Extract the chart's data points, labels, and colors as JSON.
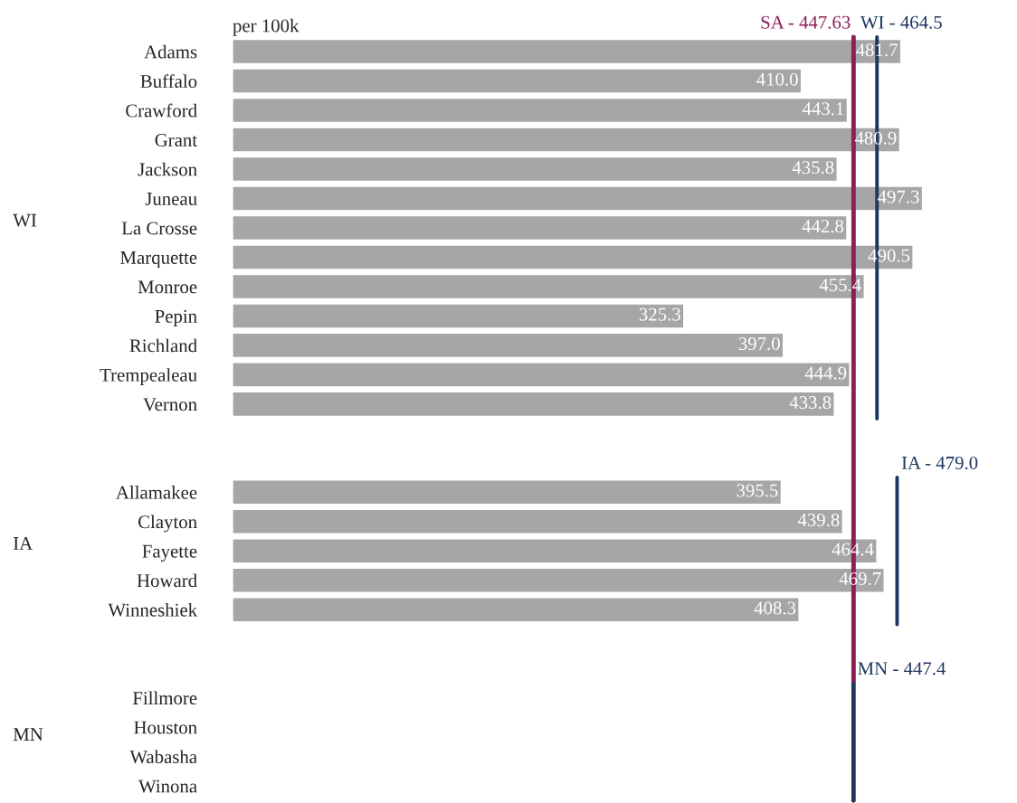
{
  "chart_data": {
    "type": "bar",
    "orientation": "horizontal",
    "xlabel": "per 100k",
    "categories": [
      "Adams",
      "Buffalo",
      "Crawford",
      "Grant",
      "Jackson",
      "Juneau",
      "La Crosse",
      "Marquette",
      "Monroe",
      "Pepin",
      "Richland",
      "Trempealeau",
      "Vernon",
      null,
      null,
      "Allamakee",
      "Clayton",
      "Fayette",
      "Howard",
      "Winneshiek",
      null,
      null,
      "Fillmore",
      "Houston",
      "Wabasha",
      "Winona"
    ],
    "values": [
      481.7,
      410.0,
      443.1,
      480.9,
      435.8,
      497.3,
      442.8,
      490.5,
      455.4,
      325.3,
      397.0,
      444.9,
      433.8,
      null,
      null,
      395.5,
      439.8,
      464.4,
      469.7,
      408.3,
      null,
      null,
      null,
      null,
      null,
      null
    ],
    "color": "#a6a6a6",
    "value_labels": [
      "481.7",
      "410.0",
      "443.1",
      "480.9",
      "435.8",
      "497.3",
      "442.8",
      "490.5",
      "455.4",
      "325.3",
      "397.0",
      "444.9",
      "433.8",
      null,
      null,
      "395.5",
      "439.8",
      "464.4",
      "469.7",
      "408.3",
      null,
      null,
      null,
      null,
      null,
      null
    ],
    "annotations": [
      "WI",
      "IA",
      "MN"
    ],
    "ref_lines": [
      {
        "axis": "x",
        "value": 447.63,
        "label": "SA - 447.63",
        "color": "#8c1f55",
        "line_style": "solid"
      },
      {
        "axis": "x",
        "value": 464.5,
        "label": "WI - 464.5",
        "color": "#1f3660",
        "line_style": "solid"
      },
      {
        "axis": "x",
        "value": 479.0,
        "label": "IA - 479.0",
        "color": "#1f3660",
        "line_style": "solid"
      },
      {
        "axis": "x",
        "value": 447.4,
        "label": "MN - 447.4",
        "color": "#1f3660",
        "line_style": "solid"
      }
    ],
    "legend": false,
    "grid": false
  }
}
